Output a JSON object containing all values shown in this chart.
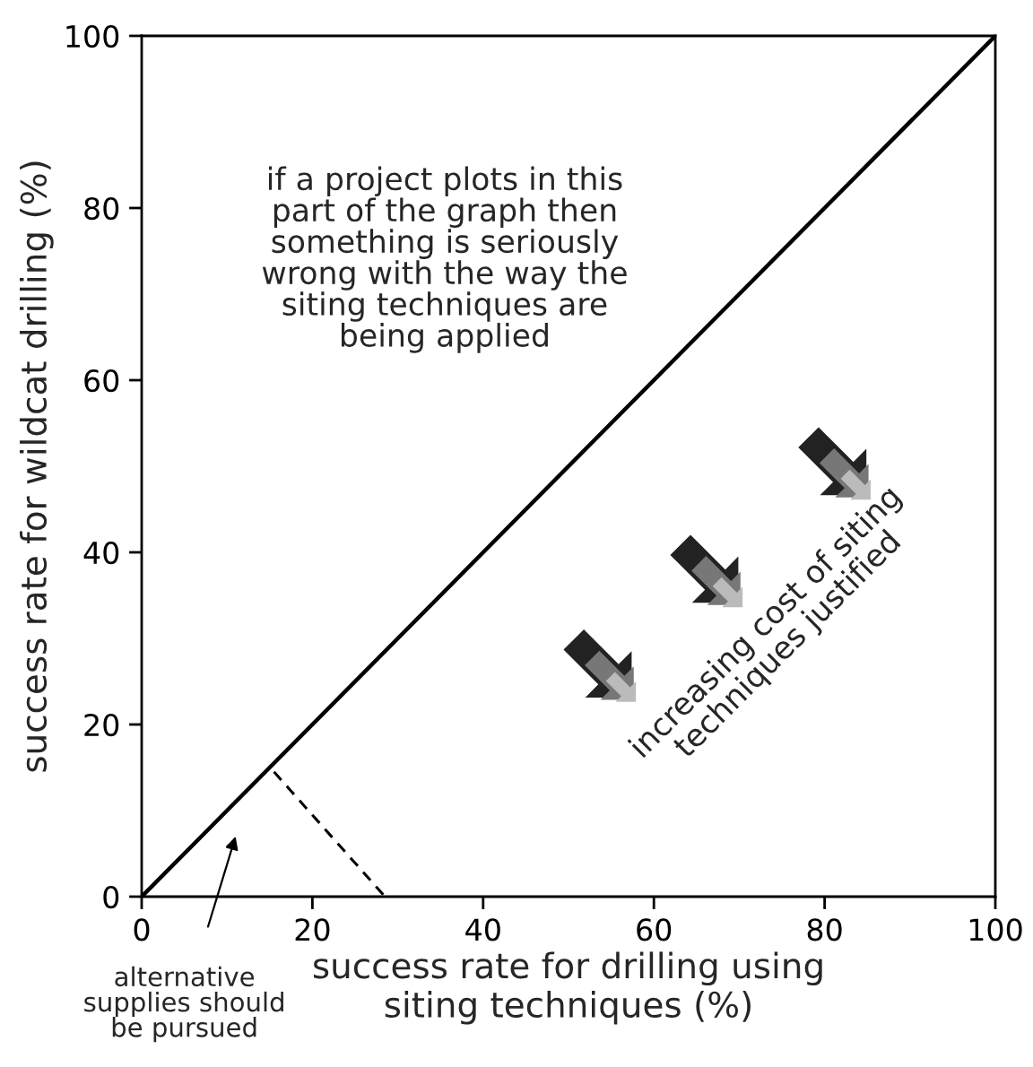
{
  "chart_data": {
    "type": "line",
    "xlabel": "success rate for drilling using\nsiting techniques (%)",
    "ylabel": "success rate for wildcat drilling (%)",
    "xlim": [
      0,
      100
    ],
    "ylim": [
      0,
      100
    ],
    "xticks": [
      0,
      20,
      40,
      60,
      80,
      100
    ],
    "yticks": [
      0,
      20,
      40,
      60,
      80,
      100
    ],
    "grid": false,
    "marker": "none",
    "series": [
      {
        "color": "#000000",
        "line_style": "solid",
        "x": [
          0,
          100
        ],
        "values": [
          0,
          100
        ]
      },
      {
        "color": "#000000",
        "line_style": "dashed",
        "x": [
          15.5,
          28.5
        ],
        "values": [
          14.5,
          0
        ]
      }
    ],
    "annotations": [
      "if a project plots in this\npart of the graph then\nsomething is seriously\nwrong with the way the\nsiting techniques are\nbeing applied",
      "increasing cost of siting\ntechniques justified",
      "alternative\nsupplies should\nbe pursued"
    ]
  }
}
